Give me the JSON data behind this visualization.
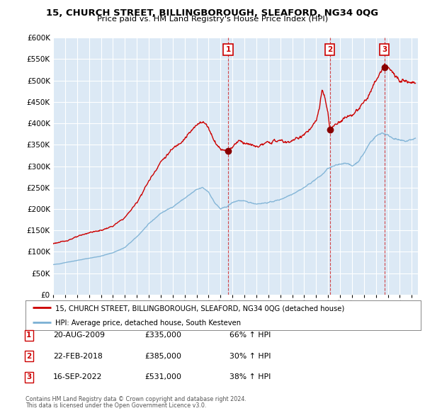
{
  "title": "15, CHURCH STREET, BILLINGBOROUGH, SLEAFORD, NG34 0QG",
  "subtitle": "Price paid vs. HM Land Registry's House Price Index (HPI)",
  "legend_label_red": "15, CHURCH STREET, BILLINGBOROUGH, SLEAFORD, NG34 0QG (detached house)",
  "legend_label_blue": "HPI: Average price, detached house, South Kesteven",
  "footer1": "Contains HM Land Registry data © Crown copyright and database right 2024.",
  "footer2": "This data is licensed under the Open Government Licence v3.0.",
  "transactions": [
    {
      "num": 1,
      "date": "20-AUG-2009",
      "price": "£335,000",
      "change": "66% ↑ HPI",
      "year": 2009.64
    },
    {
      "num": 2,
      "date": "22-FEB-2018",
      "price": "£385,000",
      "change": "30% ↑ HPI",
      "year": 2018.14
    },
    {
      "num": 3,
      "date": "16-SEP-2022",
      "price": "£531,000",
      "change": "38% ↑ HPI",
      "year": 2022.71
    }
  ],
  "trans_prices": [
    335000,
    385000,
    531000
  ],
  "ylim": [
    0,
    600000
  ],
  "xlim_start": 1995.0,
  "xlim_end": 2025.5,
  "bg_color": "#dce9f5",
  "grid_color": "#ffffff",
  "red_color": "#cc0000",
  "blue_color": "#7ab0d4"
}
